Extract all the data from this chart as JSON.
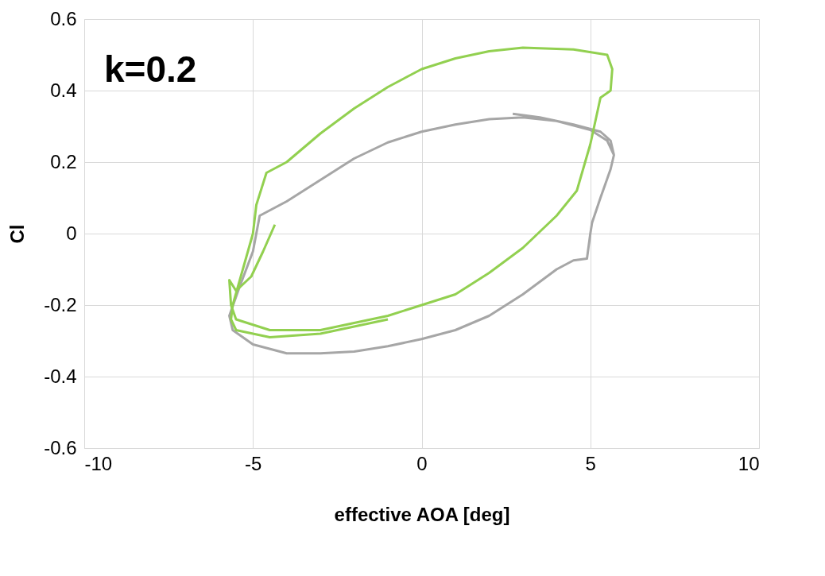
{
  "chart_data": {
    "type": "line",
    "xlabel": "effective AOA [deg]",
    "ylabel": "Cl",
    "annotations": [
      "k=0.2"
    ],
    "xlim": [
      -10,
      10
    ],
    "xticks": [
      -10,
      -5,
      0,
      5,
      10
    ],
    "ylim": [
      -0.6,
      0.6
    ],
    "yticks": [
      -0.6,
      -0.4,
      -0.2,
      0,
      0.2,
      0.4,
      0.6
    ],
    "grid": true,
    "marker": "none",
    "line_style": "solid",
    "series": [
      {
        "color": "#a6a6a6",
        "x": [
          2.7,
          3.5,
          4.5,
          5.3,
          5.6,
          5.7,
          5.6,
          5.3,
          5.05,
          5.0,
          4.9,
          4.5,
          4.0,
          3.0,
          2.0,
          1.0,
          0.0,
          -1.0,
          -2.0,
          -3.0,
          -4.0,
          -5.0,
          -5.6,
          -5.7,
          -5.4,
          -5.0,
          -4.8,
          -4.5,
          -4.0,
          -3.0,
          -2.0,
          -1.0,
          0.0,
          1.0,
          2.0,
          3.0,
          4.0,
          5.0,
          5.5,
          5.7
        ],
        "values": [
          0.335,
          0.325,
          0.305,
          0.285,
          0.26,
          0.22,
          0.18,
          0.1,
          0.03,
          0.0,
          -0.07,
          -0.075,
          -0.1,
          -0.17,
          -0.23,
          -0.27,
          -0.295,
          -0.315,
          -0.33,
          -0.335,
          -0.335,
          -0.31,
          -0.27,
          -0.23,
          -0.15,
          -0.05,
          0.05,
          0.065,
          0.09,
          0.15,
          0.21,
          0.255,
          0.285,
          0.305,
          0.32,
          0.325,
          0.315,
          0.29,
          0.26,
          0.22
        ]
      },
      {
        "color": "#92d050",
        "x": [
          -4.35,
          -4.7,
          -5.05,
          -5.5,
          -5.7,
          -5.65,
          -5.5,
          -4.5,
          -3.0,
          -1.0,
          0.0,
          1.0,
          2.0,
          3.0,
          4.0,
          4.6,
          5.0,
          5.3,
          5.6,
          5.65,
          5.5,
          4.5,
          3.0,
          2.0,
          1.0,
          0.0,
          -1.0,
          -2.0,
          -3.0,
          -4.0,
          -4.6,
          -4.9,
          -5.0,
          -5.3,
          -5.6,
          -5.65,
          -5.5,
          -4.5,
          -3.0,
          -1.0
        ],
        "values": [
          0.025,
          -0.05,
          -0.12,
          -0.16,
          -0.13,
          -0.2,
          -0.24,
          -0.27,
          -0.27,
          -0.23,
          -0.2,
          -0.17,
          -0.11,
          -0.04,
          0.05,
          0.12,
          0.25,
          0.38,
          0.4,
          0.46,
          0.5,
          0.515,
          0.52,
          0.51,
          0.49,
          0.46,
          0.41,
          0.35,
          0.28,
          0.2,
          0.17,
          0.08,
          0.0,
          -0.1,
          -0.2,
          -0.24,
          -0.27,
          -0.29,
          -0.28,
          -0.24
        ]
      }
    ]
  }
}
